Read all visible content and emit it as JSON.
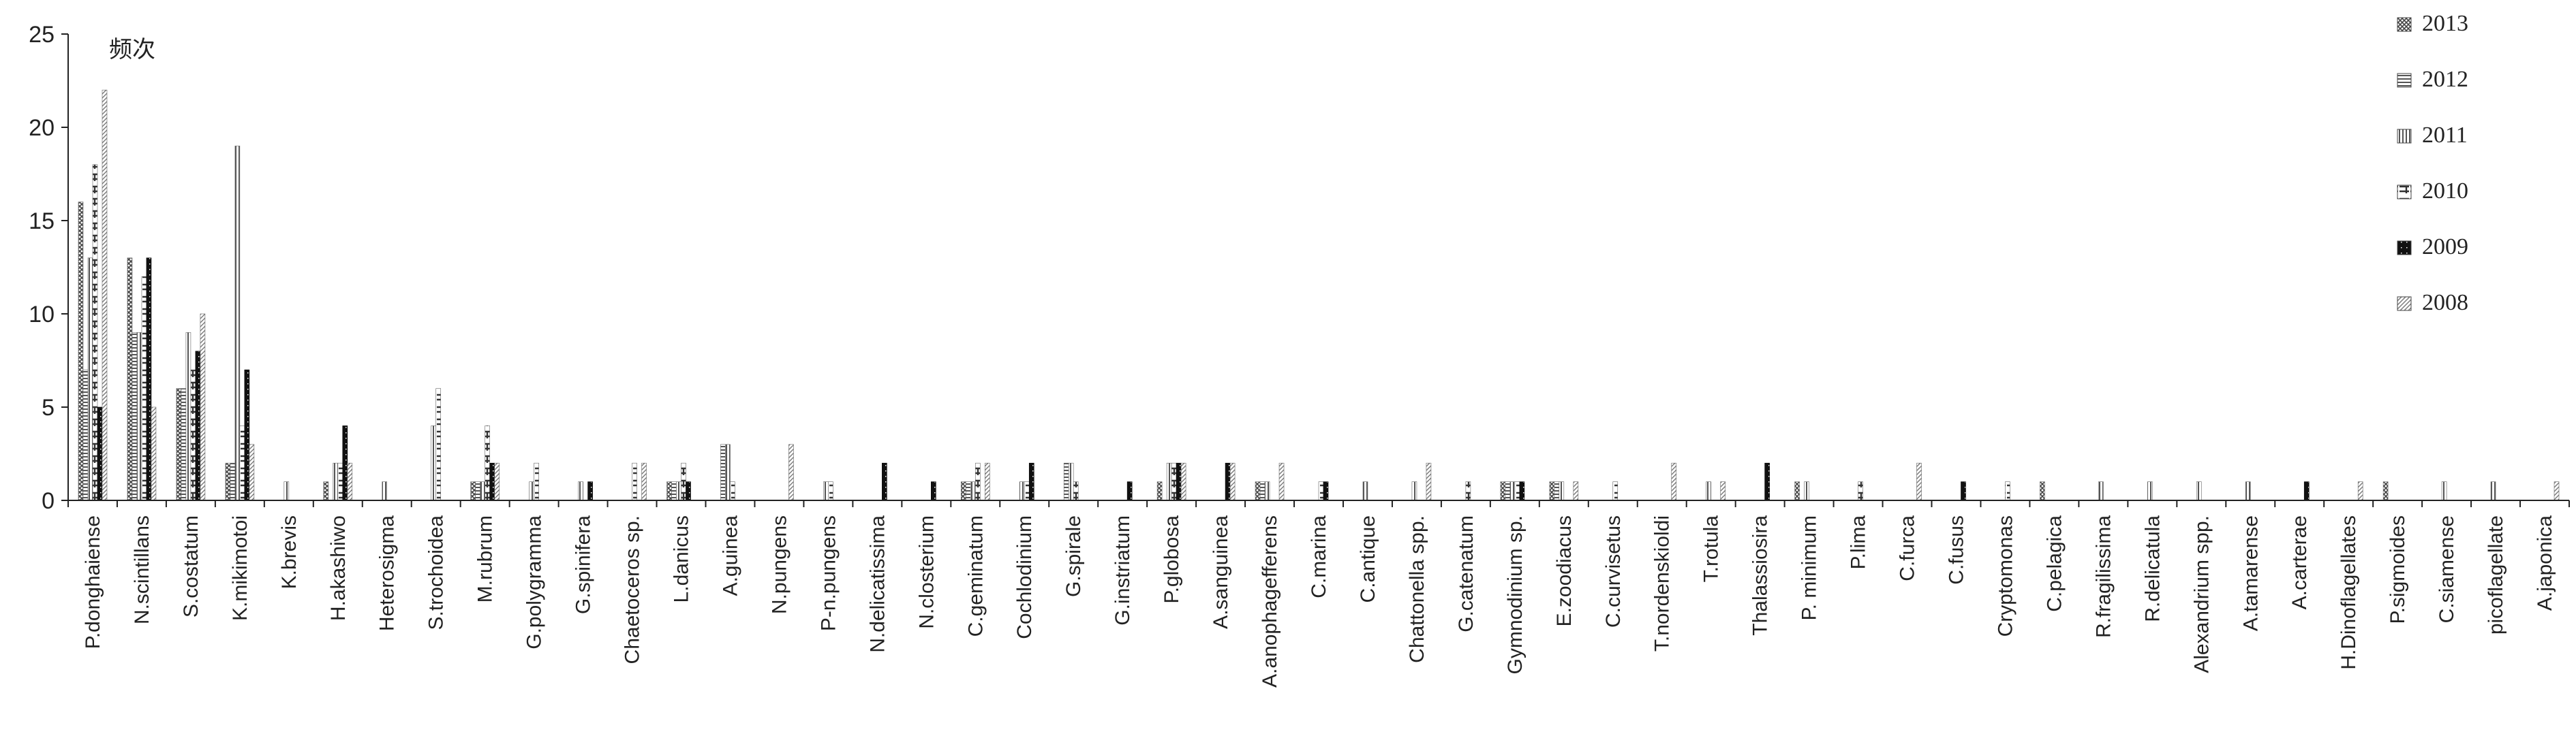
{
  "chart_data": {
    "type": "bar",
    "title": "",
    "xlabel": "",
    "ylabel": "频次",
    "ylim": [
      0,
      25
    ],
    "yticks": [
      0,
      5,
      10,
      15,
      20,
      25
    ],
    "grid": false,
    "legend_position": "top-right",
    "categories": [
      "P.donghaiense",
      "N.scintillans",
      "S.costatum",
      "K.mikimotoi",
      "K.brevis",
      "H.akashiwo",
      "Heterosigma",
      "S.trochoidea",
      "M.rubrum",
      "G.polygramma",
      "G.spinifera",
      "Chaetoceros sp.",
      "L.danicus",
      "A.guinea",
      "N.pungens",
      "P-n.pungens",
      "N.delicatissima",
      "N.closterium",
      "C.geminatum",
      "Cochlodinium",
      "G.spirale",
      "G.instriatum",
      "P.globosa",
      "A.sanguinea",
      "A.anophagefferens",
      "C.marina",
      "C.antique",
      "Chattonella spp.",
      "G.catenatum",
      "Gymnodinium sp.",
      "E.zoodiacus",
      "C.curvisetus",
      "T.nordenskioldi",
      "T.rotula",
      "Thalassiosira",
      "P. minimum",
      "P.lima",
      "C.furca",
      "C.fusus",
      "Cryptomonas",
      "C.pelagica",
      "R.fragilissima",
      "R.delicatula",
      "Alexandrium spp.",
      "A.tamarense",
      "A.carterae",
      "H.Dinoflagellates",
      "P.sigmoides",
      "C.siamense",
      "picoflagellate",
      "A.japonica"
    ],
    "series": [
      {
        "name": "2013",
        "values": [
          16,
          13,
          6,
          2,
          0,
          1,
          0,
          0,
          1,
          0,
          0,
          0,
          1,
          0,
          0,
          0,
          0,
          0,
          1,
          0,
          0,
          0,
          1,
          0,
          1,
          0,
          0,
          0,
          0,
          1,
          1,
          0,
          0,
          0,
          0,
          1,
          0,
          0,
          0,
          0,
          1,
          0,
          0,
          0,
          0,
          0,
          0,
          1,
          0,
          0,
          0
        ]
      },
      {
        "name": "2012",
        "values": [
          7,
          9,
          6,
          2,
          0,
          0,
          0,
          0,
          1,
          0,
          0,
          0,
          1,
          3,
          0,
          0,
          0,
          0,
          1,
          0,
          2,
          0,
          0,
          0,
          1,
          0,
          0,
          0,
          0,
          1,
          1,
          0,
          0,
          0,
          0,
          0,
          0,
          0,
          0,
          0,
          0,
          0,
          0,
          0,
          0,
          0,
          0,
          0,
          0,
          0,
          0
        ]
      },
      {
        "name": "2011",
        "values": [
          13,
          9,
          9,
          19,
          1,
          2,
          1,
          4,
          1,
          1,
          1,
          0,
          1,
          3,
          0,
          1,
          0,
          0,
          1,
          1,
          2,
          0,
          2,
          0,
          1,
          0,
          1,
          1,
          0,
          1,
          1,
          0,
          0,
          1,
          0,
          1,
          0,
          0,
          0,
          0,
          0,
          1,
          1,
          1,
          1,
          0,
          0,
          0,
          1,
          1,
          0
        ]
      },
      {
        "name": "2010",
        "values": [
          18,
          12,
          7,
          4,
          0,
          2,
          0,
          6,
          4,
          2,
          0,
          2,
          2,
          1,
          0,
          1,
          0,
          0,
          2,
          1,
          1,
          0,
          2,
          0,
          0,
          1,
          0,
          0,
          1,
          1,
          0,
          1,
          0,
          0,
          0,
          0,
          1,
          0,
          0,
          1,
          0,
          0,
          0,
          0,
          0,
          0,
          0,
          0,
          0,
          0,
          0
        ]
      },
      {
        "name": "2009",
        "values": [
          5,
          13,
          8,
          7,
          0,
          4,
          0,
          0,
          2,
          0,
          1,
          0,
          1,
          0,
          0,
          0,
          2,
          1,
          0,
          2,
          0,
          1,
          2,
          2,
          0,
          1,
          0,
          0,
          0,
          1,
          0,
          0,
          0,
          0,
          2,
          0,
          0,
          0,
          1,
          0,
          0,
          0,
          0,
          0,
          0,
          1,
          0,
          0,
          0,
          0,
          0
        ]
      },
      {
        "name": "2008",
        "values": [
          22,
          5,
          10,
          3,
          0,
          2,
          0,
          0,
          2,
          0,
          0,
          2,
          0,
          0,
          3,
          0,
          0,
          0,
          2,
          0,
          0,
          0,
          2,
          2,
          2,
          0,
          0,
          2,
          0,
          0,
          1,
          0,
          2,
          1,
          0,
          0,
          0,
          2,
          0,
          0,
          0,
          0,
          0,
          0,
          0,
          0,
          1,
          0,
          0,
          0,
          1
        ]
      }
    ],
    "legend_order": [
      "2013",
      "2012",
      "2011",
      "2010",
      "2009",
      "2008"
    ]
  },
  "colors": {
    "axis": "#222222",
    "series_2013": "#444444",
    "series_2012": "#555555",
    "series_2011": "#555555",
    "series_2010": "#444444",
    "series_2009": "#111111",
    "series_2008": "#666666"
  }
}
